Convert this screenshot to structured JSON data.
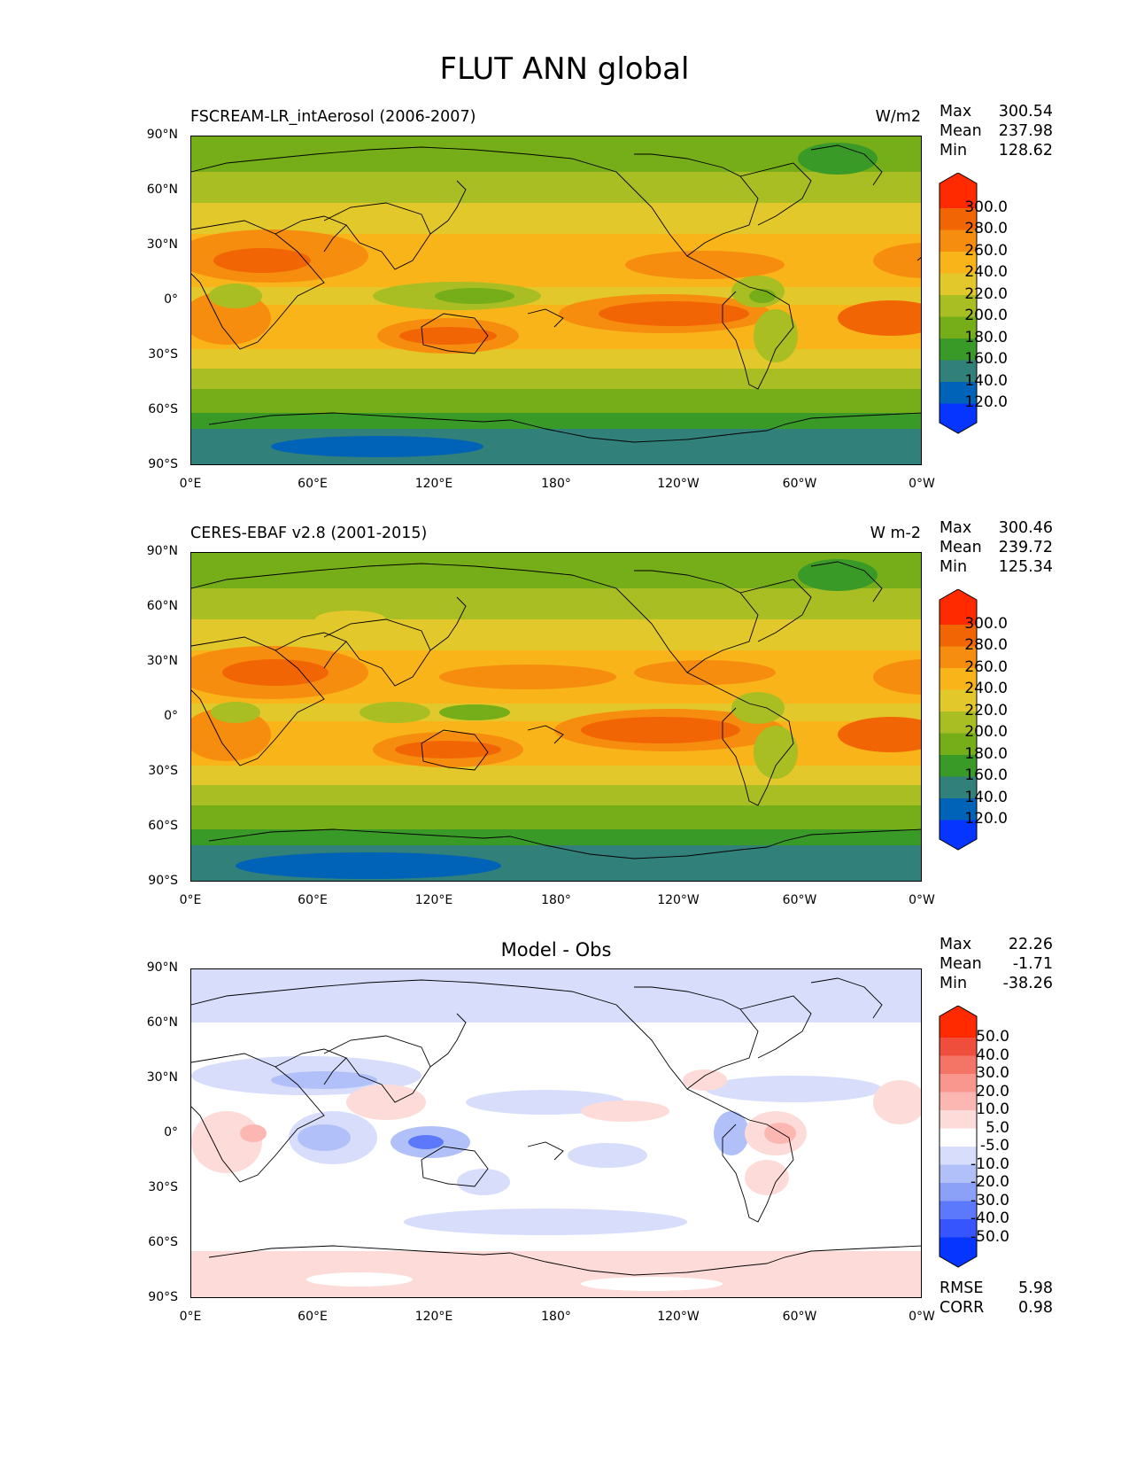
{
  "title": "FLUT ANN global",
  "axes": {
    "lat_ticks": [
      "90°N",
      "60°N",
      "30°N",
      "0°",
      "30°S",
      "60°S",
      "90°S"
    ],
    "lon_ticks": [
      "0°E",
      "60°E",
      "120°E",
      "180°",
      "120°W",
      "60°W",
      "0°W"
    ]
  },
  "colors": {
    "abs_levels": [
      "#0535ff",
      "#0063b8",
      "#31807a",
      "#3a9a28",
      "#75ae19",
      "#a8be22",
      "#e3c82b",
      "#f9b41a",
      "#f78d0f",
      "#f26505",
      "#ff2a00"
    ],
    "diff_levels": [
      "#0535ff",
      "#3655ff",
      "#5c79fb",
      "#8ba0f7",
      "#b2c0f9",
      "#d7ddfb",
      "#ffffff",
      "#fddbd8",
      "#fcb7b2",
      "#f9968d",
      "#f47466",
      "#f04e3d",
      "#ff2a00"
    ]
  },
  "panels": [
    {
      "id": "test",
      "title": "FSCREAM-LR_intAerosol (2006-2007)",
      "units": "W/m2",
      "stats": {
        "max_label": "Max",
        "max": "300.54",
        "mean_label": "Mean",
        "mean": "237.98",
        "min_label": "Min",
        "min": "128.62"
      },
      "colorbar_labels": [
        "300.0",
        "280.0",
        "260.0",
        "240.0",
        "220.0",
        "200.0",
        "180.0",
        "160.0",
        "140.0",
        "120.0"
      ]
    },
    {
      "id": "ref",
      "title": "CERES-EBAF v2.8 (2001-2015)",
      "units": "W m-2",
      "stats": {
        "max_label": "Max",
        "max": "300.46",
        "mean_label": "Mean",
        "mean": "239.72",
        "min_label": "Min",
        "min": "125.34"
      },
      "colorbar_labels": [
        "300.0",
        "280.0",
        "260.0",
        "240.0",
        "220.0",
        "200.0",
        "180.0",
        "160.0",
        "140.0",
        "120.0"
      ]
    },
    {
      "id": "diff",
      "title": "Model - Obs",
      "units": "",
      "stats": {
        "max_label": "Max",
        "max": "22.26",
        "mean_label": "Mean",
        "mean": "-1.71",
        "min_label": "Min",
        "min": "-38.26"
      },
      "colorbar_labels": [
        "50.0",
        "40.0",
        "30.0",
        "20.0",
        "10.0",
        "5.0",
        "-5.0",
        "-10.0",
        "-20.0",
        "-30.0",
        "-40.0",
        "-50.0"
      ],
      "extra_stats": {
        "rmse_label": "RMSE",
        "rmse": "5.98",
        "corr_label": "CORR",
        "corr": "0.98"
      }
    }
  ]
}
